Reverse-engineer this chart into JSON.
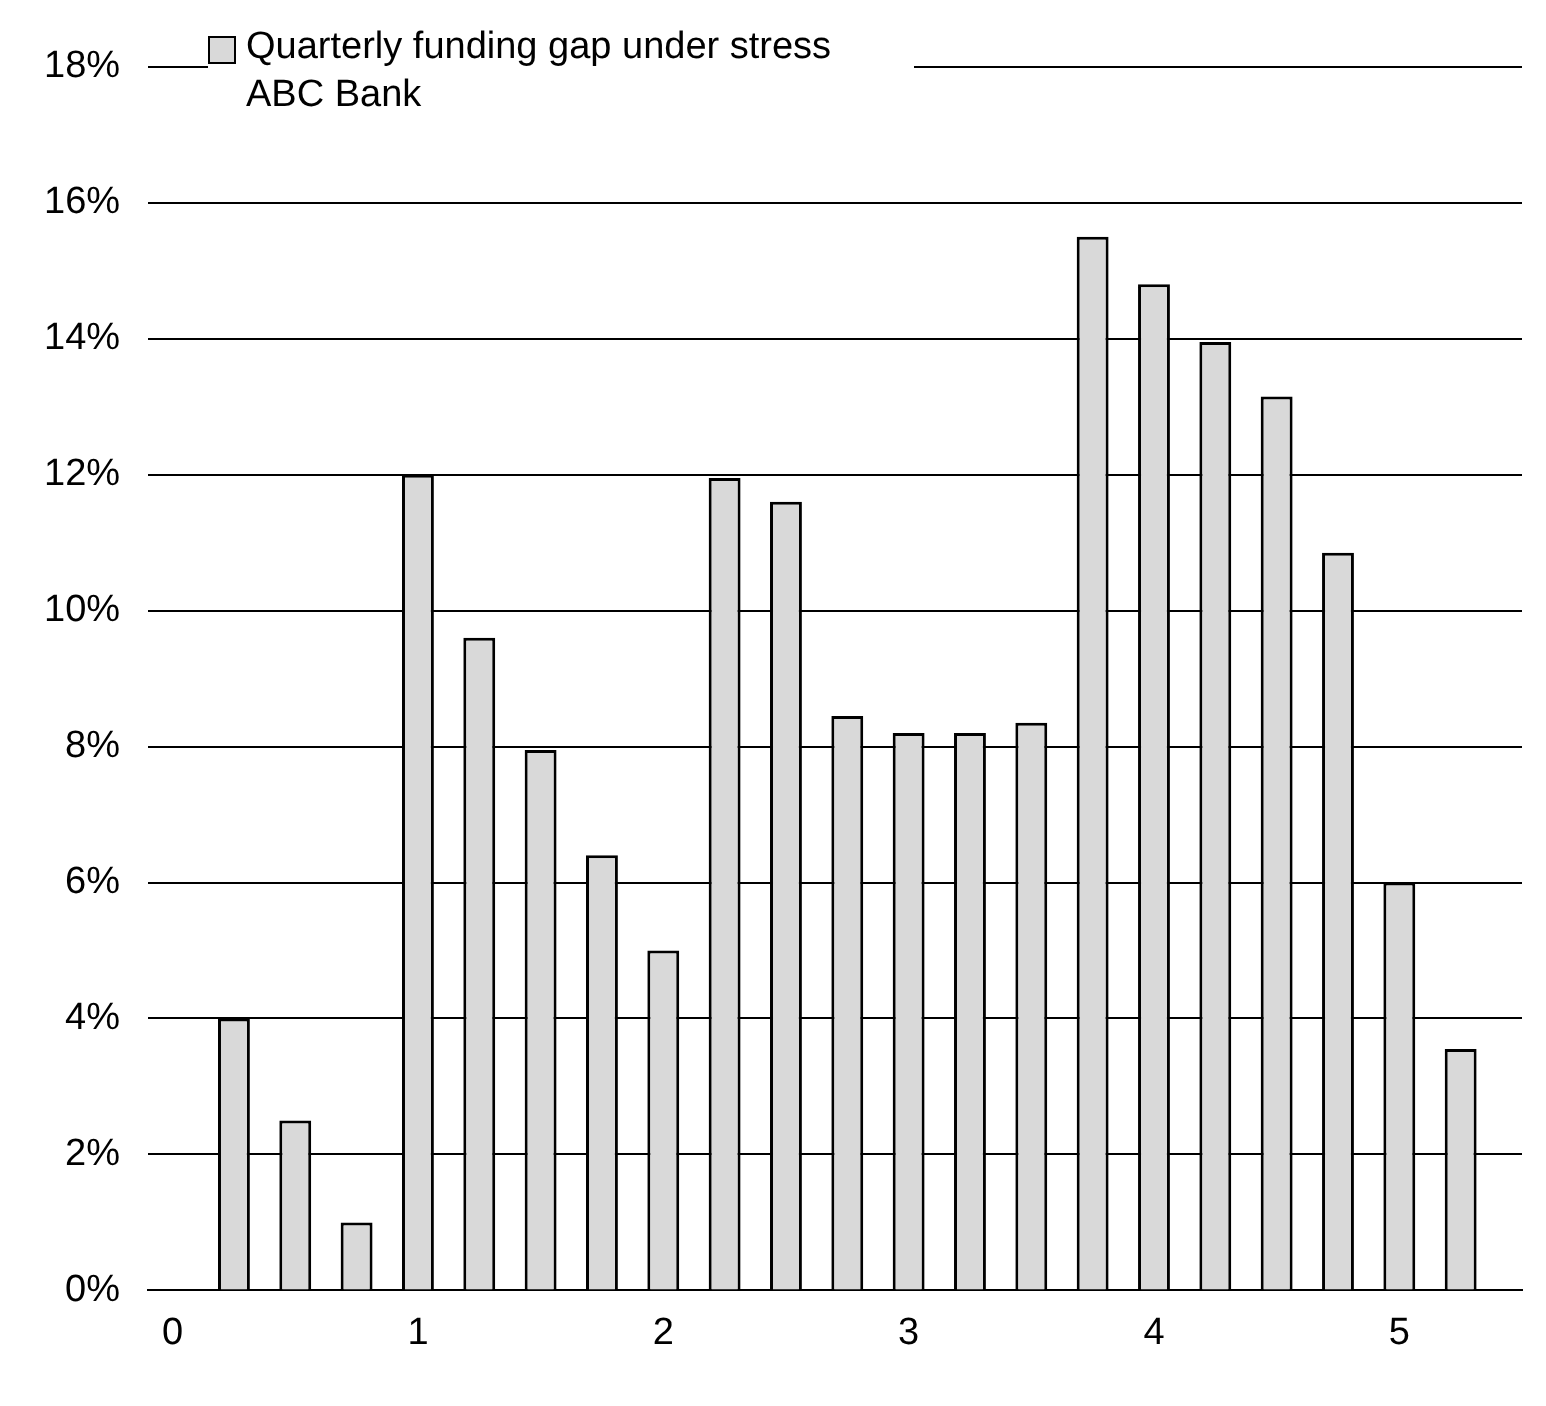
{
  "chart_data": {
    "type": "bar",
    "x": [
      0.25,
      0.5,
      0.75,
      1,
      1.25,
      1.5,
      1.75,
      2,
      2.25,
      2.5,
      2.75,
      3,
      3.25,
      3.5,
      3.75,
      4,
      4.25,
      4.5,
      4.75,
      5,
      5.25
    ],
    "series": [
      {
        "name": "Quarterly funding gap under stress ABC Bank",
        "color": "#d9d9d9",
        "values": [
          4.0,
          2.5,
          1.0,
          12.0,
          9.6,
          7.95,
          6.4,
          5.0,
          11.95,
          11.6,
          8.45,
          8.2,
          8.2,
          8.35,
          15.5,
          14.8,
          13.95,
          13.15,
          10.85,
          6.0,
          3.55
        ]
      }
    ],
    "xlim": [
      -0.1,
      5.5
    ],
    "xticks": [
      0,
      1,
      2,
      3,
      4,
      5
    ],
    "ylim": [
      0,
      18
    ],
    "yticks": [
      {
        "value": 0,
        "label": "0%"
      },
      {
        "value": 2,
        "label": "2%"
      },
      {
        "value": 4,
        "label": "4%"
      },
      {
        "value": 6,
        "label": "6%"
      },
      {
        "value": 8,
        "label": "8%"
      },
      {
        "value": 10,
        "label": "10%"
      },
      {
        "value": 12,
        "label": "12%"
      },
      {
        "value": 14,
        "label": "14%"
      },
      {
        "value": 16,
        "label": "16%"
      },
      {
        "value": 18,
        "label": "18%"
      }
    ],
    "grid": "y",
    "legend": "top left"
  }
}
